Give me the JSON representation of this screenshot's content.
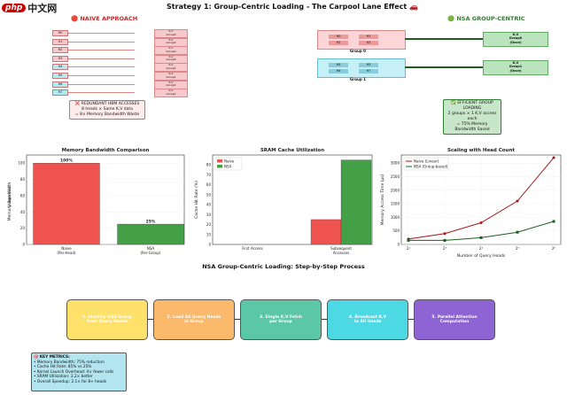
{
  "header": {
    "logo": "php 中文网",
    "title": "Strategy 1: Group-Centric Loading - The Carpool Lane Effect 🚗"
  },
  "naive": {
    "title": "🔴 NAIVE APPROACH",
    "rows": [
      {
        "head": "H0",
        "kv": "K,V\nGroup0"
      },
      {
        "head": "H1",
        "kv": "K,V\nGroup0"
      },
      {
        "head": "H2",
        "kv": "K,V\nGroup0"
      },
      {
        "head": "H3",
        "kv": "K,V\nGroup0"
      },
      {
        "head": "H4",
        "kv": "K,V\nGroup1"
      },
      {
        "head": "H5",
        "kv": "K,V\nGroup1"
      },
      {
        "head": "H6",
        "kv": "K,V\nGroup1"
      },
      {
        "head": "H7",
        "kv": "K,V\nGroup1"
      }
    ],
    "note": "❌ REDUNDANT HBM ACCESSES\n8 heads × Same K,V data\n= 8× Memory Bandwidth Waste"
  },
  "nsa": {
    "title": "🟢 NSA GROUP-CENTRIC",
    "groups": [
      {
        "label": "Group 0",
        "heads": [
          "H0",
          "H1",
          "H2",
          "H3"
        ],
        "kv": "K,V\nGroup0\n(Once)"
      },
      {
        "label": "Group 1",
        "heads": [
          "H4",
          "H5",
          "H6",
          "H7"
        ],
        "kv": "K,V\nGroup1\n(Once)"
      }
    ],
    "note": "✅ EFFICIENT GROUP LOADING\n2 groups × 1 K,V access each\n= 75% Memory Bandwidth Saved"
  },
  "colors": {
    "red": "#ef5350",
    "green": "#43a047",
    "pink": "#f7c9cc",
    "teal": "#b2ebf2",
    "darkred": "#a31515",
    "darkgreen": "#1b5e20"
  },
  "chart_data": [
    {
      "type": "bar",
      "title": "Memory Bandwidth Comparison",
      "ylabel": "Memory Bandwidth Usage (%)",
      "categories": [
        "Naive\n(Per-Head)",
        "NSA\n(Per-Group)"
      ],
      "values": [
        100,
        25
      ],
      "labels": [
        "100%",
        "25%"
      ],
      "ylim": [
        0,
        110
      ],
      "yticks": [
        0,
        20,
        40,
        60,
        80,
        100
      ]
    },
    {
      "type": "bar",
      "title": "SRAM Cache Utilization",
      "ylabel": "Cache Hit Rate (%)",
      "categories": [
        "First Access",
        "Subsequent\nAccesses"
      ],
      "series": [
        {
          "name": "Naive",
          "values": [
            0,
            25
          ]
        },
        {
          "name": "NSA",
          "values": [
            0,
            85
          ]
        }
      ],
      "ylim": [
        0,
        90
      ],
      "yticks": [
        0,
        10,
        20,
        30,
        40,
        50,
        60,
        70,
        80
      ],
      "legend": "top-left"
    },
    {
      "type": "line",
      "title": "Scaling with Head Count",
      "xlabel": "Number of Query Heads",
      "ylabel": "Memory Access Time (μs)",
      "x": [
        4,
        8,
        16,
        32,
        64
      ],
      "xticklabels": [
        "2²",
        "2³",
        "2⁴",
        "2⁵",
        "2⁶"
      ],
      "series": [
        {
          "name": "Naive (Linear)",
          "values": [
            200,
            400,
            800,
            1600,
            3200
          ]
        },
        {
          "name": "NSA (Group-based)",
          "values": [
            150,
            150,
            250,
            450,
            850
          ]
        }
      ],
      "ylim": [
        0,
        3300
      ],
      "yticks": [
        0,
        500,
        1000,
        1500,
        2000,
        2500,
        3000
      ],
      "legend": "top-left"
    }
  ],
  "process": {
    "title": "NSA Group-Centric Loading: Step-by-Step Process",
    "steps": [
      "1. Identify GQA Group\nfrom Query Heads",
      "2. Load All Query Heads\nin Group",
      "3. Single K,V Fetch\nper Group",
      "4. Broadcast K,V\nto All Heads",
      "5. Parallel Attention\nComputation"
    ]
  },
  "metrics": {
    "title": "🎯 KEY METRICS:",
    "lines": [
      "• Memory Bandwidth: 75% reduction",
      "• Cache Hit Rate: 85% vs 25%",
      "• Kernel Launch Overhead: 4× fewer calls",
      "• SRAM Utilization: 3.2× better",
      "• Overall Speedup: 2.1× for 8+ heads"
    ]
  }
}
